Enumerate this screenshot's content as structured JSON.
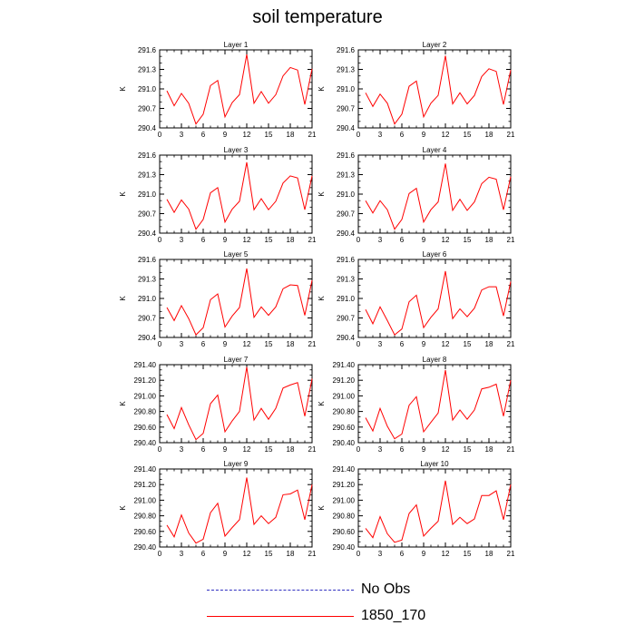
{
  "title": "soil temperature",
  "legend": [
    {
      "label": "No Obs",
      "color": "#3030c0",
      "style": "dashed"
    },
    {
      "label": "1850_170",
      "color": "#ff0000",
      "style": "solid"
    }
  ],
  "chart_data": [
    {
      "type": "line",
      "title": "Layer 1",
      "ylabel": "K",
      "xlim": [
        0,
        21
      ],
      "xticks": [
        0,
        3,
        6,
        9,
        12,
        15,
        18,
        21
      ],
      "xtick_labels": [
        "0",
        "3",
        "6",
        "9",
        "12",
        "15",
        "18",
        "21"
      ],
      "ylim": [
        290.4,
        291.6
      ],
      "yticks": [
        290.4,
        290.7,
        291.0,
        291.3,
        291.6
      ],
      "ytick_labels": [
        "290.4",
        "290.7",
        "291.0",
        "291.3",
        "291.6"
      ],
      "x": [
        1,
        2,
        3,
        4,
        5,
        6,
        7,
        8,
        9,
        10,
        11,
        12,
        13,
        14,
        15,
        16,
        17,
        18,
        19,
        20,
        21
      ],
      "series": [
        {
          "values": [
            290.97,
            290.74,
            290.93,
            290.78,
            290.46,
            290.61,
            291.05,
            291.13,
            290.57,
            290.79,
            290.91,
            291.53,
            290.78,
            290.96,
            290.78,
            290.91,
            291.2,
            291.33,
            291.29,
            290.76,
            291.31
          ]
        }
      ]
    },
    {
      "type": "line",
      "title": "Layer 2",
      "ylabel": "K",
      "xlim": [
        0,
        21
      ],
      "xticks": [
        0,
        3,
        6,
        9,
        12,
        15,
        18,
        21
      ],
      "xtick_labels": [
        "0",
        "3",
        "6",
        "9",
        "12",
        "15",
        "18",
        "21"
      ],
      "ylim": [
        290.4,
        291.6
      ],
      "yticks": [
        290.4,
        290.7,
        291.0,
        291.3,
        291.6
      ],
      "ytick_labels": [
        "290.4",
        "290.7",
        "291.0",
        "291.3",
        "291.6"
      ],
      "x": [
        1,
        2,
        3,
        4,
        5,
        6,
        7,
        8,
        9,
        10,
        11,
        12,
        13,
        14,
        15,
        16,
        17,
        18,
        19,
        20,
        21
      ],
      "series": [
        {
          "values": [
            290.94,
            290.73,
            290.92,
            290.78,
            290.46,
            290.61,
            291.04,
            291.12,
            290.57,
            290.78,
            290.9,
            291.51,
            290.77,
            290.94,
            290.77,
            290.9,
            291.19,
            291.31,
            291.27,
            290.76,
            291.29
          ]
        }
      ]
    },
    {
      "type": "line",
      "title": "Layer 3",
      "ylabel": "K",
      "xlim": [
        0,
        21
      ],
      "xticks": [
        0,
        3,
        6,
        9,
        12,
        15,
        18,
        21
      ],
      "xtick_labels": [
        "0",
        "3",
        "6",
        "9",
        "12",
        "15",
        "18",
        "21"
      ],
      "ylim": [
        290.4,
        291.6
      ],
      "yticks": [
        290.4,
        290.7,
        291.0,
        291.3,
        291.6
      ],
      "ytick_labels": [
        "290.4",
        "290.7",
        "291.0",
        "291.3",
        "291.6"
      ],
      "x": [
        1,
        2,
        3,
        4,
        5,
        6,
        7,
        8,
        9,
        10,
        11,
        12,
        13,
        14,
        15,
        16,
        17,
        18,
        19,
        20,
        21
      ],
      "series": [
        {
          "values": [
            290.92,
            290.72,
            290.91,
            290.77,
            290.46,
            290.61,
            291.02,
            291.1,
            290.57,
            290.77,
            290.89,
            291.49,
            290.76,
            290.93,
            290.76,
            290.89,
            291.17,
            291.28,
            291.25,
            290.76,
            291.28
          ]
        }
      ]
    },
    {
      "type": "line",
      "title": "Layer 4",
      "ylabel": "K",
      "xlim": [
        0,
        21
      ],
      "xticks": [
        0,
        3,
        6,
        9,
        12,
        15,
        18,
        21
      ],
      "xtick_labels": [
        "0",
        "3",
        "6",
        "9",
        "12",
        "15",
        "18",
        "21"
      ],
      "ylim": [
        290.4,
        291.6
      ],
      "yticks": [
        290.4,
        290.7,
        291.0,
        291.3,
        291.6
      ],
      "ytick_labels": [
        "290.4",
        "290.7",
        "291.0",
        "291.3",
        "291.6"
      ],
      "x": [
        1,
        2,
        3,
        4,
        5,
        6,
        7,
        8,
        9,
        10,
        11,
        12,
        13,
        14,
        15,
        16,
        17,
        18,
        19,
        20,
        21
      ],
      "series": [
        {
          "values": [
            290.9,
            290.71,
            290.9,
            290.76,
            290.46,
            290.61,
            291.01,
            291.09,
            290.57,
            290.76,
            290.88,
            291.47,
            290.75,
            290.92,
            290.75,
            290.88,
            291.16,
            291.26,
            291.23,
            290.76,
            291.27
          ]
        }
      ]
    },
    {
      "type": "line",
      "title": "Layer 5",
      "ylabel": "K",
      "xlim": [
        0,
        21
      ],
      "xticks": [
        0,
        3,
        6,
        9,
        12,
        15,
        18,
        21
      ],
      "xtick_labels": [
        "0",
        "3",
        "6",
        "9",
        "12",
        "15",
        "18",
        "21"
      ],
      "ylim": [
        290.4,
        291.6
      ],
      "yticks": [
        290.4,
        290.7,
        291.0,
        291.3,
        291.6
      ],
      "ytick_labels": [
        "290.4",
        "290.7",
        "291.0",
        "291.3",
        "291.6"
      ],
      "x": [
        1,
        2,
        3,
        4,
        5,
        6,
        7,
        8,
        9,
        10,
        11,
        12,
        13,
        14,
        15,
        16,
        17,
        18,
        19,
        20,
        21
      ],
      "series": [
        {
          "values": [
            290.86,
            290.66,
            290.89,
            290.69,
            290.44,
            290.55,
            290.98,
            291.07,
            290.56,
            290.73,
            290.86,
            291.46,
            290.71,
            290.87,
            290.74,
            290.87,
            291.15,
            291.21,
            291.2,
            290.74,
            291.28
          ]
        }
      ]
    },
    {
      "type": "line",
      "title": "Layer 6",
      "ylabel": "K",
      "xlim": [
        0,
        21
      ],
      "xticks": [
        0,
        3,
        6,
        9,
        12,
        15,
        18,
        21
      ],
      "xtick_labels": [
        "0",
        "3",
        "6",
        "9",
        "12",
        "15",
        "18",
        "21"
      ],
      "ylim": [
        290.4,
        291.6
      ],
      "yticks": [
        290.4,
        290.7,
        291.0,
        291.3,
        291.6
      ],
      "ytick_labels": [
        "290.4",
        "290.7",
        "291.0",
        "291.3",
        "291.6"
      ],
      "x": [
        1,
        2,
        3,
        4,
        5,
        6,
        7,
        8,
        9,
        10,
        11,
        12,
        13,
        14,
        15,
        16,
        17,
        18,
        19,
        20,
        21
      ],
      "series": [
        {
          "values": [
            290.83,
            290.61,
            290.87,
            290.66,
            290.44,
            290.53,
            290.95,
            291.05,
            290.55,
            290.71,
            290.84,
            291.42,
            290.69,
            290.84,
            290.72,
            290.85,
            291.13,
            291.18,
            291.18,
            290.73,
            291.26
          ]
        }
      ]
    },
    {
      "type": "line",
      "title": "Layer 7",
      "ylabel": "K",
      "xlim": [
        0,
        21
      ],
      "xticks": [
        0,
        3,
        6,
        9,
        12,
        15,
        18,
        21
      ],
      "xtick_labels": [
        "0",
        "3",
        "6",
        "9",
        "12",
        "15",
        "18",
        "21"
      ],
      "ylim": [
        290.4,
        291.4
      ],
      "yticks": [
        290.4,
        290.6,
        290.8,
        291.0,
        291.2,
        291.4
      ],
      "ytick_labels": [
        "290.40",
        "290.60",
        "290.80",
        "291.00",
        "291.20",
        "291.40"
      ],
      "x": [
        1,
        2,
        3,
        4,
        5,
        6,
        7,
        8,
        9,
        10,
        11,
        12,
        13,
        14,
        15,
        16,
        17,
        18,
        19,
        20,
        21
      ],
      "series": [
        {
          "values": [
            290.76,
            290.58,
            290.85,
            290.63,
            290.44,
            290.52,
            290.9,
            291.01,
            290.54,
            290.68,
            290.8,
            291.37,
            290.69,
            290.84,
            290.7,
            290.84,
            291.1,
            291.14,
            291.17,
            290.74,
            291.22
          ]
        }
      ]
    },
    {
      "type": "line",
      "title": "Layer 8",
      "ylabel": "K",
      "xlim": [
        0,
        21
      ],
      "xticks": [
        0,
        3,
        6,
        9,
        12,
        15,
        18,
        21
      ],
      "xtick_labels": [
        "0",
        "3",
        "6",
        "9",
        "12",
        "15",
        "18",
        "21"
      ],
      "ylim": [
        290.4,
        291.4
      ],
      "yticks": [
        290.4,
        290.6,
        290.8,
        291.0,
        291.2,
        291.4
      ],
      "ytick_labels": [
        "290.40",
        "290.60",
        "290.80",
        "291.00",
        "291.20",
        "291.40"
      ],
      "x": [
        1,
        2,
        3,
        4,
        5,
        6,
        7,
        8,
        9,
        10,
        11,
        12,
        13,
        14,
        15,
        16,
        17,
        18,
        19,
        20,
        21
      ],
      "series": [
        {
          "values": [
            290.72,
            290.55,
            290.84,
            290.61,
            290.45,
            290.51,
            290.88,
            290.99,
            290.54,
            290.66,
            290.78,
            291.33,
            290.69,
            290.82,
            290.7,
            290.82,
            291.09,
            291.11,
            291.15,
            290.74,
            291.2
          ]
        }
      ]
    },
    {
      "type": "line",
      "title": "Layer 9",
      "ylabel": "K",
      "xlim": [
        0,
        21
      ],
      "xticks": [
        0,
        3,
        6,
        9,
        12,
        15,
        18,
        21
      ],
      "xtick_labels": [
        "0",
        "3",
        "6",
        "9",
        "12",
        "15",
        "18",
        "21"
      ],
      "ylim": [
        290.4,
        291.4
      ],
      "yticks": [
        290.4,
        290.6,
        290.8,
        291.0,
        291.2,
        291.4
      ],
      "ytick_labels": [
        "290.40",
        "290.60",
        "290.80",
        "291.00",
        "291.20",
        "291.40"
      ],
      "x": [
        1,
        2,
        3,
        4,
        5,
        6,
        7,
        8,
        9,
        10,
        11,
        12,
        13,
        14,
        15,
        16,
        17,
        18,
        19,
        20,
        21
      ],
      "series": [
        {
          "values": [
            290.68,
            290.53,
            290.81,
            290.58,
            290.45,
            290.5,
            290.84,
            290.96,
            290.54,
            290.65,
            290.75,
            291.29,
            290.69,
            290.8,
            290.7,
            290.78,
            291.07,
            291.08,
            291.13,
            290.75,
            291.2
          ]
        }
      ]
    },
    {
      "type": "line",
      "title": "Layer 10",
      "ylabel": "K",
      "xlim": [
        0,
        21
      ],
      "xticks": [
        0,
        3,
        6,
        9,
        12,
        15,
        18,
        21
      ],
      "xtick_labels": [
        "0",
        "3",
        "6",
        "9",
        "12",
        "15",
        "18",
        "21"
      ],
      "ylim": [
        290.4,
        291.4
      ],
      "yticks": [
        290.4,
        290.6,
        290.8,
        291.0,
        291.2,
        291.4
      ],
      "ytick_labels": [
        "290.40",
        "290.60",
        "290.80",
        "291.00",
        "291.20",
        "291.40"
      ],
      "x": [
        1,
        2,
        3,
        4,
        5,
        6,
        7,
        8,
        9,
        10,
        11,
        12,
        13,
        14,
        15,
        16,
        17,
        18,
        19,
        20,
        21
      ],
      "series": [
        {
          "values": [
            290.64,
            290.52,
            290.79,
            290.57,
            290.46,
            290.49,
            290.83,
            290.94,
            290.54,
            290.64,
            290.73,
            291.25,
            290.69,
            290.78,
            290.7,
            290.76,
            291.06,
            291.06,
            291.12,
            290.75,
            291.2
          ]
        }
      ]
    }
  ]
}
